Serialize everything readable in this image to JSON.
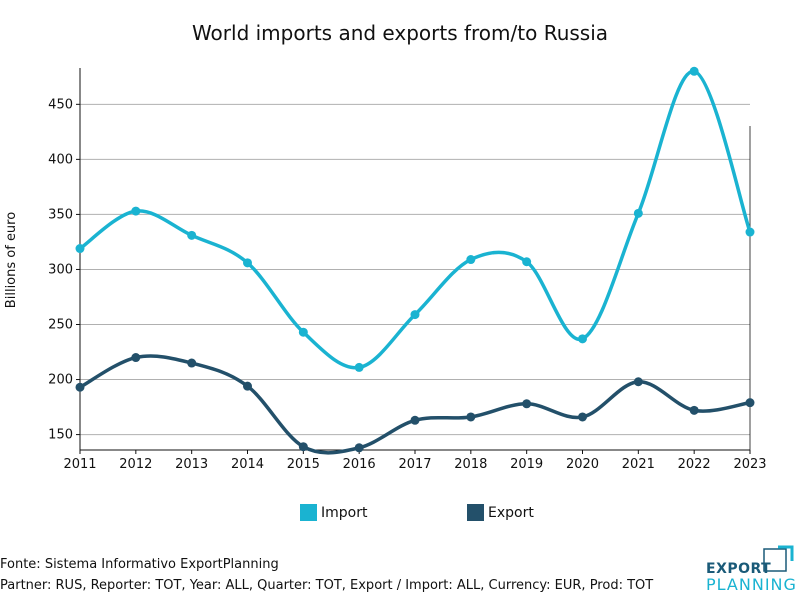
{
  "chart_data": {
    "type": "line",
    "title": "World imports and exports from/to Russia",
    "xlabel": "",
    "ylabel": "Billions of euro",
    "x": [
      2011,
      2012,
      2013,
      2014,
      2015,
      2016,
      2017,
      2018,
      2019,
      2020,
      2021,
      2022,
      2023
    ],
    "x_ticks": [
      "2011",
      "2012",
      "2013",
      "2014",
      "2015",
      "2016",
      "2017",
      "2018",
      "2019",
      "2020",
      "2021",
      "2022",
      "2023"
    ],
    "y_ticks": [
      "150",
      "200",
      "250",
      "300",
      "350",
      "400",
      "450"
    ],
    "ylim": [
      136,
      483
    ],
    "grid": "horizontal",
    "legend_position": "bottom",
    "series": [
      {
        "name": "Import",
        "color": "#1ab3d1",
        "values": [
          319,
          353,
          331,
          306,
          243,
          211,
          259,
          309,
          307,
          237,
          351,
          480,
          334
        ]
      },
      {
        "name": "Export",
        "color": "#23506a",
        "values": [
          193,
          220,
          215,
          194,
          139,
          138,
          163,
          166,
          178,
          166,
          198,
          172,
          179
        ]
      }
    ]
  },
  "legend": {
    "import_label": "Import",
    "export_label": "Export"
  },
  "footer": {
    "source": "Fonte: Sistema Informativo ExportPlanning",
    "params": "Partner: RUS, Reporter: TOT, Year: ALL, Quarter: TOT, Export / Import: ALL, Currency: EUR, Prod: TOT"
  },
  "logo": {
    "line1": "EXPORT",
    "line2": "PLANNING",
    "line1_color": "#1a5a78",
    "line2_color": "#1ab3d1"
  }
}
